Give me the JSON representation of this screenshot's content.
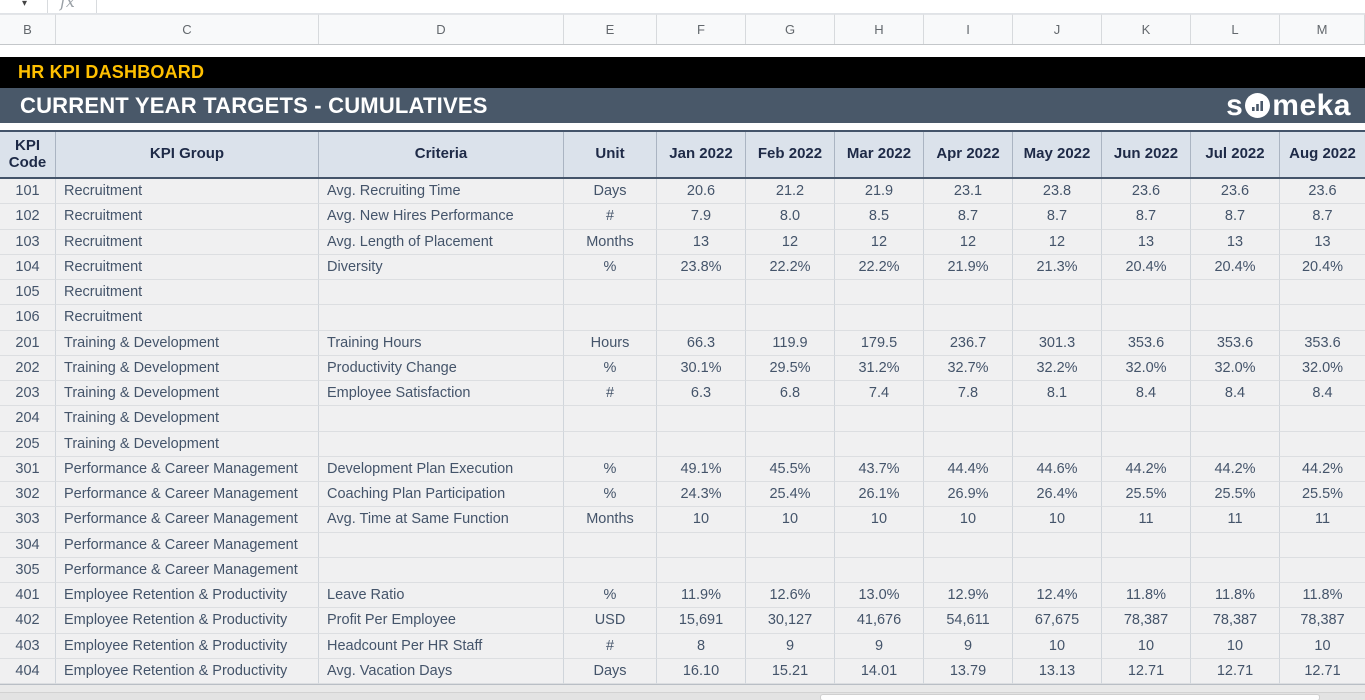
{
  "app": {
    "formula_bar": {
      "fx_label": "fx",
      "name_box_arrow": "▾"
    },
    "column_letters": [
      "B",
      "C",
      "D",
      "E",
      "F",
      "G",
      "H",
      "I",
      "J",
      "K",
      "L",
      "M"
    ]
  },
  "banners": {
    "dashboard_title": "HR KPI DASHBOARD",
    "section_title": "CURRENT YEAR TARGETS - CUMULATIVES",
    "brand_text_left": "s",
    "brand_text_right": "meka"
  },
  "colors": {
    "gold_accent": "#FFC000",
    "black_banner": "#000000",
    "slate_banner": "#495869",
    "table_header_bg": "#DBE2EB",
    "table_header_text": "#1E2A47",
    "row_bg": "#F0F0F1",
    "data_text": "#44546A"
  },
  "table": {
    "headers": [
      "KPI Code",
      "KPI Group",
      "Criteria",
      "Unit"
    ],
    "months": [
      "Jan 2022",
      "Feb 2022",
      "Mar 2022",
      "Apr 2022",
      "May 2022",
      "Jun 2022",
      "Jul 2022",
      "Aug 2022"
    ],
    "rows": [
      {
        "code": "101",
        "group": "Recruitment",
        "criteria": "Avg. Recruiting Time",
        "unit": "Days",
        "values": [
          "20.6",
          "21.2",
          "21.9",
          "23.1",
          "23.8",
          "23.6",
          "23.6",
          "23.6"
        ]
      },
      {
        "code": "102",
        "group": "Recruitment",
        "criteria": "Avg. New Hires Performance",
        "unit": "#",
        "values": [
          "7.9",
          "8.0",
          "8.5",
          "8.7",
          "8.7",
          "8.7",
          "8.7",
          "8.7"
        ]
      },
      {
        "code": "103",
        "group": "Recruitment",
        "criteria": "Avg. Length of Placement",
        "unit": "Months",
        "values": [
          "13",
          "12",
          "12",
          "12",
          "12",
          "13",
          "13",
          "13"
        ]
      },
      {
        "code": "104",
        "group": "Recruitment",
        "criteria": "Diversity",
        "unit": "%",
        "values": [
          "23.8%",
          "22.2%",
          "22.2%",
          "21.9%",
          "21.3%",
          "20.4%",
          "20.4%",
          "20.4%"
        ]
      },
      {
        "code": "105",
        "group": "Recruitment",
        "criteria": "",
        "unit": "",
        "values": [
          "",
          "",
          "",
          "",
          "",
          "",
          "",
          ""
        ]
      },
      {
        "code": "106",
        "group": "Recruitment",
        "criteria": "",
        "unit": "",
        "values": [
          "",
          "",
          "",
          "",
          "",
          "",
          "",
          ""
        ]
      },
      {
        "code": "201",
        "group": "Training & Development",
        "criteria": "Training Hours",
        "unit": "Hours",
        "values": [
          "66.3",
          "119.9",
          "179.5",
          "236.7",
          "301.3",
          "353.6",
          "353.6",
          "353.6"
        ]
      },
      {
        "code": "202",
        "group": "Training & Development",
        "criteria": "Productivity Change",
        "unit": "%",
        "values": [
          "30.1%",
          "29.5%",
          "31.2%",
          "32.7%",
          "32.2%",
          "32.0%",
          "32.0%",
          "32.0%"
        ]
      },
      {
        "code": "203",
        "group": "Training & Development",
        "criteria": "Employee Satisfaction",
        "unit": "#",
        "values": [
          "6.3",
          "6.8",
          "7.4",
          "7.8",
          "8.1",
          "8.4",
          "8.4",
          "8.4"
        ]
      },
      {
        "code": "204",
        "group": "Training & Development",
        "criteria": "",
        "unit": "",
        "values": [
          "",
          "",
          "",
          "",
          "",
          "",
          "",
          ""
        ]
      },
      {
        "code": "205",
        "group": "Training & Development",
        "criteria": "",
        "unit": "",
        "values": [
          "",
          "",
          "",
          "",
          "",
          "",
          "",
          ""
        ]
      },
      {
        "code": "301",
        "group": "Performance & Career Management",
        "criteria": "Development Plan Execution",
        "unit": "%",
        "values": [
          "49.1%",
          "45.5%",
          "43.7%",
          "44.4%",
          "44.6%",
          "44.2%",
          "44.2%",
          "44.2%"
        ]
      },
      {
        "code": "302",
        "group": "Performance & Career Management",
        "criteria": "Coaching Plan Participation",
        "unit": "%",
        "values": [
          "24.3%",
          "25.4%",
          "26.1%",
          "26.9%",
          "26.4%",
          "25.5%",
          "25.5%",
          "25.5%"
        ]
      },
      {
        "code": "303",
        "group": "Performance & Career Management",
        "criteria": "Avg. Time at Same Function",
        "unit": "Months",
        "values": [
          "10",
          "10",
          "10",
          "10",
          "10",
          "11",
          "11",
          "11"
        ]
      },
      {
        "code": "304",
        "group": "Performance & Career Management",
        "criteria": "",
        "unit": "",
        "values": [
          "",
          "",
          "",
          "",
          "",
          "",
          "",
          ""
        ]
      },
      {
        "code": "305",
        "group": "Performance & Career Management",
        "criteria": "",
        "unit": "",
        "values": [
          "",
          "",
          "",
          "",
          "",
          "",
          "",
          ""
        ]
      },
      {
        "code": "401",
        "group": "Employee Retention & Productivity",
        "criteria": "Leave Ratio",
        "unit": "%",
        "values": [
          "11.9%",
          "12.6%",
          "13.0%",
          "12.9%",
          "12.4%",
          "11.8%",
          "11.8%",
          "11.8%"
        ]
      },
      {
        "code": "402",
        "group": "Employee Retention & Productivity",
        "criteria": "Profit Per Employee",
        "unit": "USD",
        "values": [
          "15,691",
          "30,127",
          "41,676",
          "54,611",
          "67,675",
          "78,387",
          "78,387",
          "78,387"
        ]
      },
      {
        "code": "403",
        "group": "Employee Retention & Productivity",
        "criteria": "Headcount Per HR Staff",
        "unit": "#",
        "values": [
          "8",
          "9",
          "9",
          "9",
          "10",
          "10",
          "10",
          "10"
        ]
      },
      {
        "code": "404",
        "group": "Employee Retention & Productivity",
        "criteria": "Avg. Vacation Days",
        "unit": "Days",
        "values": [
          "16.10",
          "15.21",
          "14.01",
          "13.79",
          "13.13",
          "12.71",
          "12.71",
          "12.71"
        ]
      }
    ]
  }
}
